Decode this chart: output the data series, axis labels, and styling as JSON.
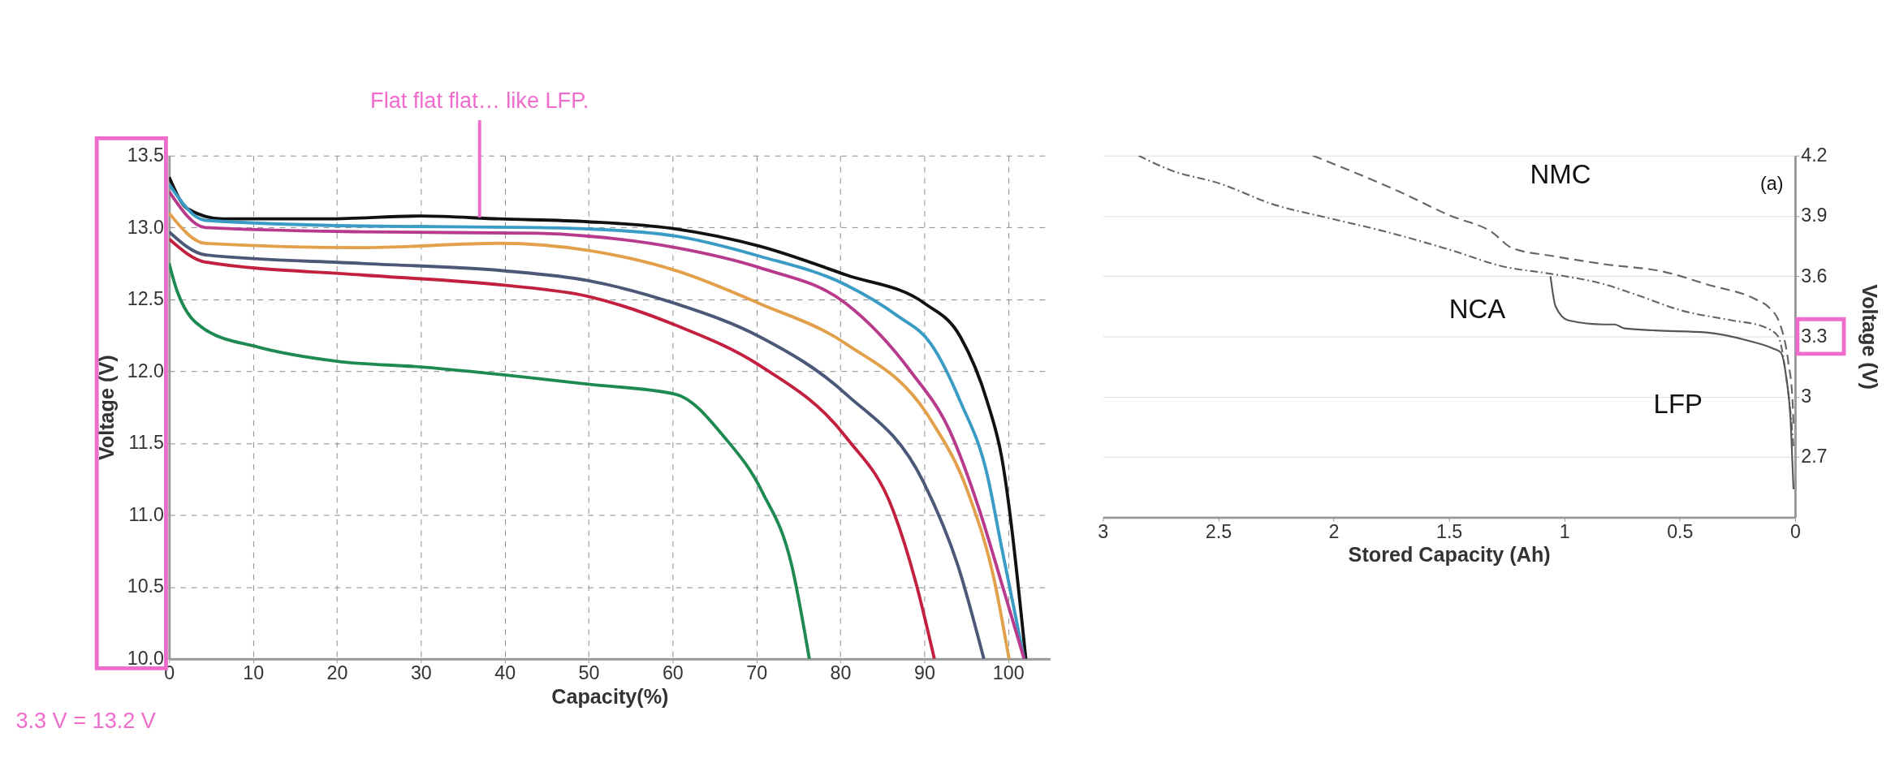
{
  "chart_data": [
    {
      "type": "line",
      "xlabel": "Capacity(%)",
      "ylabel": "Voltage (V)",
      "xlim": [
        0,
        105
      ],
      "xticks": [
        0,
        10,
        20,
        30,
        40,
        50,
        60,
        70,
        80,
        90,
        100
      ],
      "ylim": [
        10.0,
        13.5
      ],
      "yticks": [
        {
          "value": 10,
          "label": "10.0"
        },
        {
          "value": 10.5,
          "label": "10.5"
        },
        {
          "value": 11,
          "label": "11.0"
        },
        {
          "value": 11.5,
          "label": "11.5"
        },
        {
          "value": 12,
          "label": "12.0"
        },
        {
          "value": 12.5,
          "label": "12.5"
        },
        {
          "value": 13,
          "label": "13.0"
        },
        {
          "value": 13.5,
          "label": "13.5"
        }
      ],
      "grid": true,
      "marker": "none",
      "line_style": "solid",
      "annotations": [
        {
          "text": "Flat flat flat… like LFP.",
          "x": 37,
          "y": 13.07
        },
        "3.3 V = 13.2 V"
      ],
      "series": [
        {
          "color": "#111111",
          "x": [
            0,
            2.2,
            6.4,
            18.9,
            30,
            39.4,
            50,
            60.4,
            70.4,
            80.7,
            90.1,
            94.3,
            97.5,
            99.2,
            102.1
          ],
          "values": [
            13.35,
            13.13,
            13.06,
            13.06,
            13.08,
            13.06,
            13.04,
            12.99,
            12.87,
            12.67,
            12.47,
            12.24,
            11.79,
            11.41,
            10.0
          ]
        },
        {
          "color": "#3a9cc4",
          "x": [
            0,
            4.3,
            23,
            43.9,
            50,
            60.4,
            70.4,
            80.7,
            86.7,
            90.8,
            94.3,
            97.5,
            99.2,
            101.9
          ],
          "values": [
            13.3,
            13.05,
            13.01,
            13.0,
            12.99,
            12.94,
            12.8,
            12.6,
            12.39,
            12.19,
            11.79,
            11.28,
            10.78,
            10.0
          ]
        },
        {
          "color": "#b83a8c",
          "x": [
            0,
            4.3,
            23,
            43.9,
            50,
            60.4,
            70.4,
            80.7,
            88.5,
            93,
            96.6,
            99.2,
            101.9
          ],
          "values": [
            13.25,
            13.0,
            12.97,
            12.96,
            12.94,
            12.86,
            12.72,
            12.47,
            11.99,
            11.59,
            11.03,
            10.53,
            10.0
          ]
        },
        {
          "color": "#e3a04a",
          "x": [
            0,
            4.3,
            23,
            39.4,
            50,
            60.4,
            70.4,
            80.7,
            90.8,
            95.2,
            98.4,
            100.1
          ],
          "values": [
            13.1,
            12.89,
            12.86,
            12.89,
            12.84,
            12.7,
            12.47,
            12.19,
            11.66,
            11.16,
            10.53,
            10.0
          ]
        },
        {
          "color": "#4c5878",
          "x": [
            0,
            4.3,
            23,
            39.7,
            50,
            60.4,
            70.4,
            80.7,
            89.9,
            94,
            97.1
          ],
          "values": [
            12.97,
            12.81,
            12.75,
            12.7,
            12.63,
            12.47,
            12.24,
            11.84,
            11.23,
            10.65,
            10.0
          ]
        },
        {
          "color": "#c2203e",
          "x": [
            0,
            4.3,
            23,
            39.7,
            50,
            60.4,
            70.4,
            80.7,
            86.3,
            89,
            91.2
          ],
          "values": [
            12.92,
            12.76,
            12.67,
            12.6,
            12.52,
            12.32,
            12.04,
            11.54,
            11.03,
            10.53,
            10.0
          ]
        },
        {
          "color": "#1e8a52",
          "x": [
            0,
            1,
            4.3,
            10.5,
            20,
            30,
            43.9,
            50,
            60.4,
            66.2,
            70.7,
            74.2,
            76.3
          ],
          "values": [
            12.75,
            12.55,
            12.29,
            12.17,
            12.07,
            12.03,
            11.95,
            11.91,
            11.84,
            11.54,
            11.16,
            10.65,
            10.0
          ]
        }
      ]
    },
    {
      "type": "line",
      "xlabel": "Stored Capacity (Ah)",
      "ylabel": "Voltage (V)",
      "xlim": [
        3,
        0
      ],
      "xticks": [
        0,
        0.5,
        1,
        1.5,
        2,
        2.5,
        3
      ],
      "ylim": [
        2.4,
        4.2
      ],
      "yticks": [
        2.7,
        3,
        3.3,
        3.6,
        3.9,
        4.2
      ],
      "grid": "y",
      "marker": "none",
      "annotations": [
        "(a)"
      ],
      "series": [
        {
          "name": "NMC",
          "color": "#666666",
          "line_style": "dashed",
          "x": [
            2.09,
            1.714,
            1.492,
            1.315,
            1.226,
            1.049,
            0.827,
            0.561,
            0.384,
            0.162,
            0.118,
            0.062,
            0.029,
            0.011,
            0.007
          ],
          "values": [
            4.2,
            4.02,
            3.9,
            3.82,
            3.74,
            3.7,
            3.66,
            3.62,
            3.56,
            3.48,
            3.45,
            3.35,
            3.17,
            2.98,
            2.85
          ]
        },
        {
          "name": "NCA",
          "color": "#666666",
          "line_style": "dotted",
          "x": [
            2.845,
            2.712,
            2.49,
            2.268,
            2.024,
            1.803,
            1.492,
            1.271,
            1.049,
            0.827,
            0.694,
            0.494,
            0.273,
            0.14,
            0.073,
            0.04,
            0.018,
            0.007
          ],
          "values": [
            4.2,
            4.13,
            4.06,
            3.96,
            3.89,
            3.83,
            3.73,
            3.65,
            3.61,
            3.56,
            3.51,
            3.43,
            3.38,
            3.35,
            3.3,
            3.11,
            2.9,
            2.75
          ]
        },
        {
          "name": "LFP",
          "color": "#555555",
          "line_style": "solid",
          "x": [
            1.06,
            1.038,
            0.982,
            0.827,
            0.783,
            0.738,
            0.605,
            0.384,
            0.206,
            0.095,
            0.062,
            0.04,
            0.018,
            0.007
          ],
          "values": [
            3.6,
            3.45,
            3.38,
            3.36,
            3.36,
            3.34,
            3.33,
            3.32,
            3.28,
            3.24,
            3.22,
            3.11,
            2.85,
            2.54
          ]
        }
      ]
    }
  ]
}
